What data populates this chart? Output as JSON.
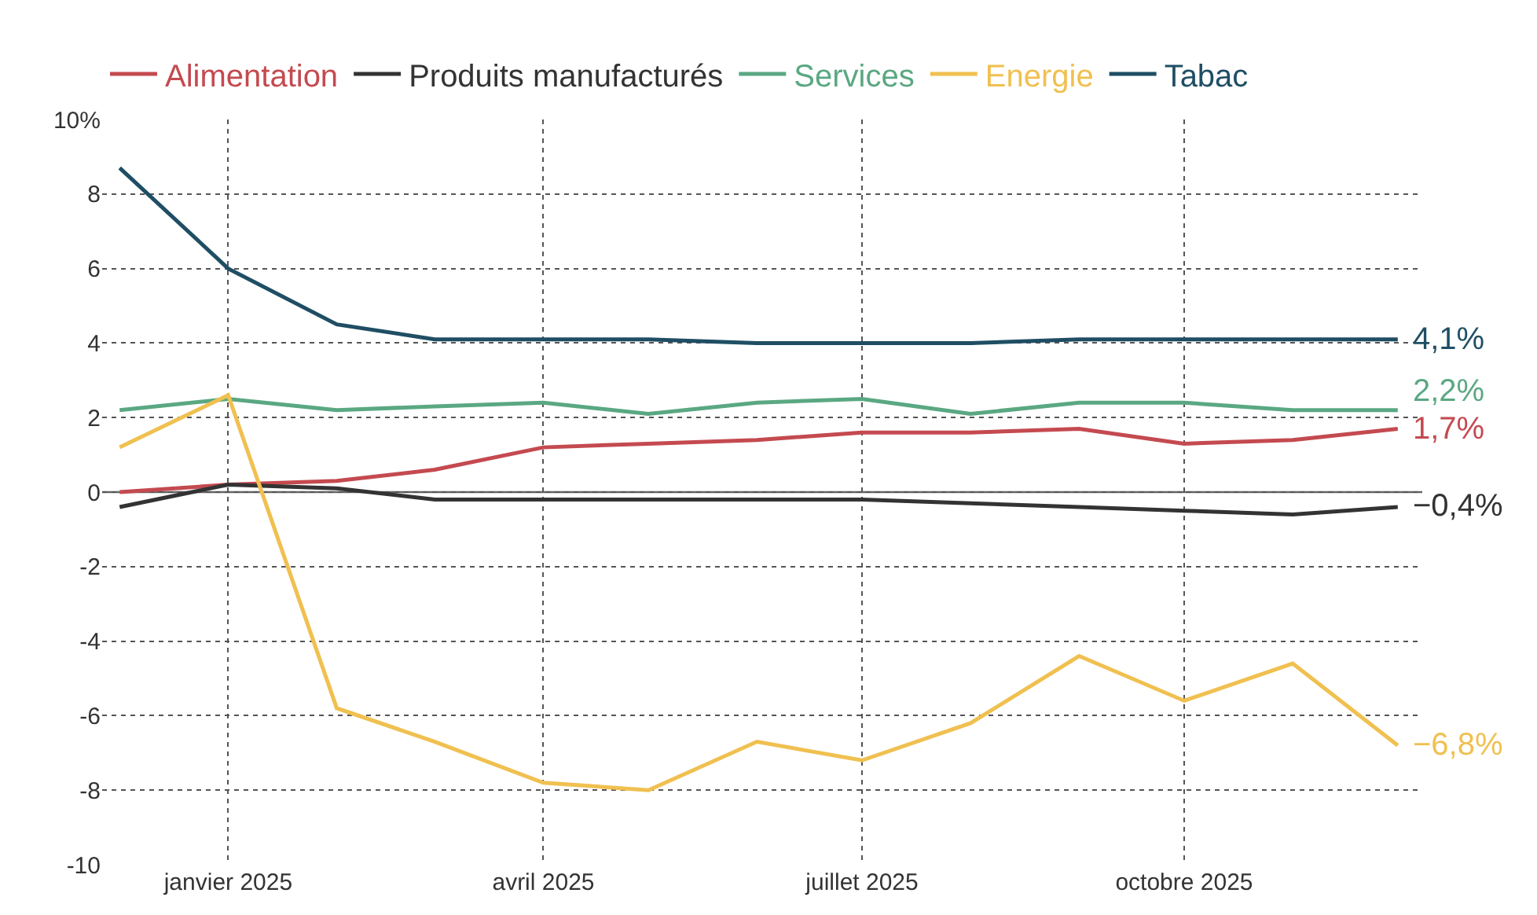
{
  "chart_data": {
    "type": "line",
    "x": [
      "2024-12",
      "2025-01",
      "2025-02",
      "2025-03",
      "2025-04",
      "2025-05",
      "2025-06",
      "2025-07",
      "2025-08",
      "2025-09",
      "2025-10",
      "2025-11",
      "2025-12"
    ],
    "series": [
      {
        "name": "Alimentation",
        "color": "#c44a50",
        "values": [
          0.0,
          0.2,
          0.3,
          0.6,
          1.2,
          1.3,
          1.4,
          1.6,
          1.6,
          1.7,
          1.3,
          1.4,
          1.7
        ]
      },
      {
        "name": "Produits manufacturés",
        "color": "#333333",
        "values": [
          -0.4,
          0.2,
          0.1,
          -0.2,
          -0.2,
          -0.2,
          -0.2,
          -0.2,
          -0.3,
          -0.4,
          -0.5,
          -0.6,
          -0.4
        ]
      },
      {
        "name": "Services",
        "color": "#5aa882",
        "values": [
          2.2,
          2.5,
          2.2,
          2.3,
          2.4,
          2.1,
          2.4,
          2.5,
          2.1,
          2.4,
          2.4,
          2.2,
          2.2
        ]
      },
      {
        "name": "Energie",
        "color": "#f0c050",
        "values": [
          1.2,
          2.6,
          -5.8,
          -6.7,
          -7.8,
          -8.0,
          -6.7,
          -7.2,
          -6.2,
          -4.4,
          -5.6,
          -4.6,
          -6.8
        ]
      },
      {
        "name": "Tabac",
        "color": "#1f4e64",
        "values": [
          8.7,
          6.0,
          4.5,
          4.1,
          4.1,
          4.1,
          4.0,
          4.0,
          4.0,
          4.1,
          4.1,
          4.1,
          4.1
        ]
      }
    ],
    "annotations": [
      {
        "text": "1,7%",
        "x": "2025-12",
        "y": 1.7
      },
      {
        "text": "−0,4%",
        "x": "2025-12",
        "y": -0.4
      },
      {
        "text": "2,2%",
        "x": "2025-12",
        "y": 2.2
      },
      {
        "text": "−6,8%",
        "x": "2025-12",
        "y": -6.8
      },
      {
        "text": "4,1%",
        "x": "2025-12",
        "y": 4.1
      }
    ],
    "xlim": [
      "2024-11-26",
      "2025-12-08"
    ],
    "xticks": [
      {
        "value": "2025-01",
        "label": "janvier 2025"
      },
      {
        "value": "2025-04",
        "label": "avril 2025"
      },
      {
        "value": "2025-07",
        "label": "juillet 2025"
      },
      {
        "value": "2025-10",
        "label": "octobre 2025"
      }
    ],
    "ylim": [
      -10,
      10
    ],
    "yticks": [
      -10,
      -8,
      -6,
      -4,
      -2,
      0,
      2,
      4,
      6,
      8,
      {
        "value": 10,
        "label": "10%"
      }
    ],
    "ref_lines": [
      {
        "axis": "y",
        "value": 0,
        "color": "#666666",
        "line_style": "solid"
      }
    ],
    "grid": true,
    "legend": "top",
    "line_style": "solid"
  }
}
